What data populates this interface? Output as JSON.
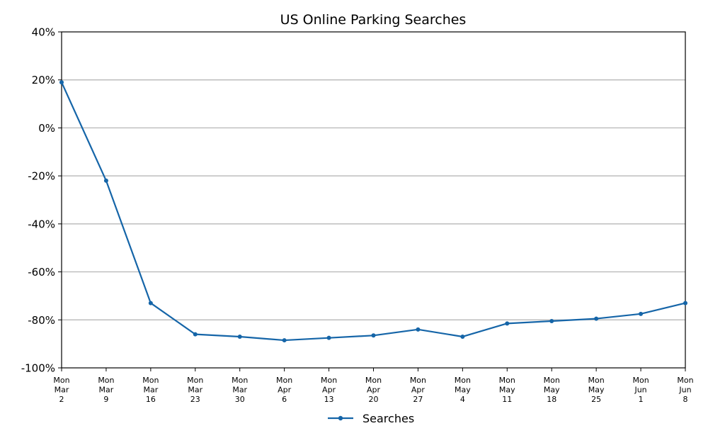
{
  "chart_data": {
    "type": "line",
    "title": "US Online Parking Searches",
    "xlabel": "",
    "ylabel": "",
    "categories": [
      [
        "Mon",
        "Mar",
        "2"
      ],
      [
        "Mon",
        "Mar",
        "9"
      ],
      [
        "Mon",
        "Mar",
        "16"
      ],
      [
        "Mon",
        "Mar",
        "23"
      ],
      [
        "Mon",
        "Mar",
        "30"
      ],
      [
        "Mon",
        "Apr",
        "6"
      ],
      [
        "Mon",
        "Apr",
        "13"
      ],
      [
        "Mon",
        "Apr",
        "20"
      ],
      [
        "Mon",
        "Apr",
        "27"
      ],
      [
        "Mon",
        "May",
        "4"
      ],
      [
        "Mon",
        "May",
        "11"
      ],
      [
        "Mon",
        "May",
        "18"
      ],
      [
        "Mon",
        "May",
        "25"
      ],
      [
        "Mon",
        "Jun",
        "1"
      ],
      [
        "Mon",
        "Jun",
        "8"
      ]
    ],
    "series": [
      {
        "name": "Searches",
        "color": "#1565a8",
        "values": [
          19,
          -22,
          -73,
          -86,
          -87,
          -88.5,
          -87.5,
          -86.5,
          -84,
          -87,
          -81.5,
          -80.5,
          -79.5,
          -77.5,
          -73
        ]
      }
    ],
    "ylim": [
      -100,
      40
    ],
    "yticks": [
      40,
      20,
      0,
      -20,
      -40,
      -60,
      -80,
      -100
    ],
    "ytick_labels": [
      "40%",
      "20%",
      "0%",
      "-20%",
      "-40%",
      "-60%",
      "-80%",
      "-100%"
    ],
    "grid": "horizontal",
    "legend_position": "bottom-center"
  }
}
